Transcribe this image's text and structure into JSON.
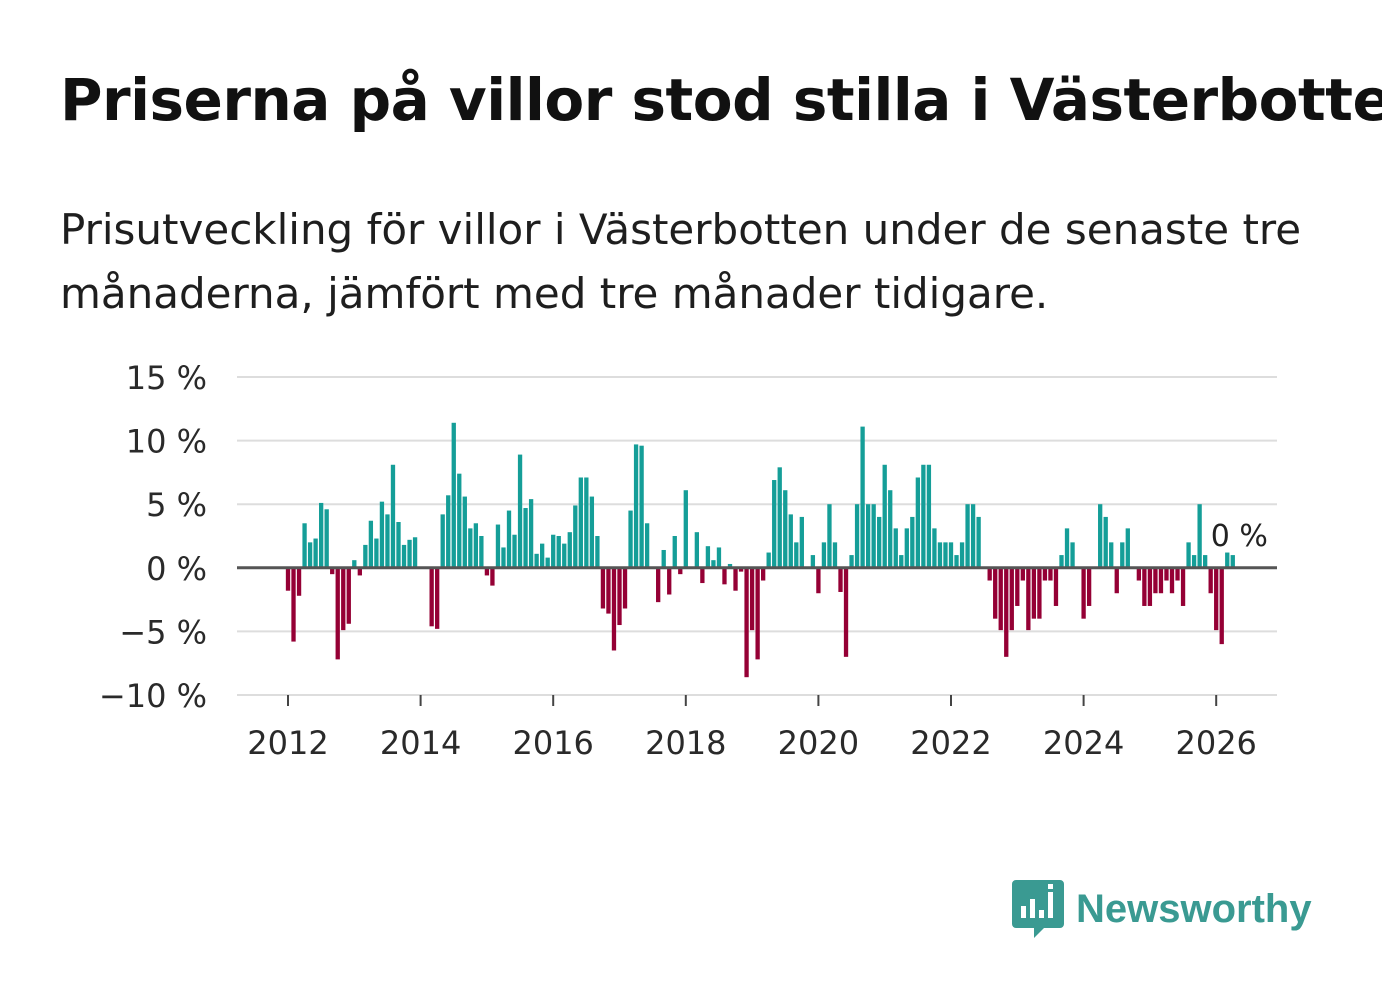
{
  "title": "Priserna på villor stod stilla i Västerbotten",
  "subtitle": "Prisutveckling för villor i Västerbotten under de senaste tre månaderna, jämfört med tre månader tidigare.",
  "brand": {
    "name": "Newsworthy",
    "color": "#3a9a92",
    "icon": "bar-chart-speech-bubble-icon"
  },
  "colors": {
    "positive": "#159e98",
    "negative": "#950035",
    "grid": "#dddddd",
    "zero": "#555555"
  },
  "chart_data": {
    "type": "bar",
    "title": "Priserna på villor stod stilla i Västerbotten",
    "xlabel": "",
    "ylabel": "",
    "ylim": [
      -10,
      15
    ],
    "yticks": [
      15,
      10,
      5,
      0,
      -5,
      -10
    ],
    "ytick_labels": [
      "15 %",
      "10 %",
      "5 %",
      "0 %",
      "−5 %",
      "−10 %"
    ],
    "xticks": [
      2012,
      2014,
      2016,
      2018,
      2020,
      2022,
      2024,
      2026
    ],
    "xtick_labels": [
      "2012",
      "2014",
      "2016",
      "2018",
      "2020",
      "2022",
      "2024",
      "2026"
    ],
    "start": {
      "year": 2012,
      "month": 1
    },
    "annotation": "0 %",
    "series": [
      {
        "name": "Prisutveckling",
        "values": [
          -1.8,
          -5.8,
          -2.2,
          3.5,
          2.0,
          2.3,
          5.1,
          4.6,
          -0.5,
          -7.2,
          -4.9,
          -4.4,
          0.6,
          -0.6,
          1.8,
          3.7,
          2.3,
          5.2,
          4.2,
          8.1,
          3.6,
          1.8,
          2.2,
          2.4,
          0.0,
          0.0,
          -4.6,
          -4.8,
          4.2,
          5.7,
          11.4,
          7.4,
          5.6,
          3.1,
          3.5,
          2.5,
          -0.6,
          -1.4,
          3.4,
          1.6,
          4.5,
          2.6,
          8.9,
          4.7,
          5.4,
          1.1,
          1.9,
          0.8,
          2.6,
          2.5,
          1.9,
          2.8,
          4.9,
          7.1,
          7.1,
          5.6,
          2.5,
          -3.2,
          -3.6,
          -6.5,
          -4.5,
          -3.2,
          4.5,
          9.7,
          9.6,
          3.5,
          0.0,
          -2.7,
          1.4,
          -2.1,
          2.5,
          -0.5,
          6.1,
          0.0,
          2.8,
          -1.2,
          1.7,
          0.6,
          1.6,
          -1.3,
          0.3,
          -1.8,
          -0.3,
          -8.6,
          -4.9,
          -7.2,
          -1.0,
          1.2,
          6.9,
          7.9,
          6.1,
          4.2,
          2.0,
          4.0,
          0.0,
          1.0,
          -2.0,
          2.0,
          5.0,
          2.0,
          -1.9,
          -7.0,
          1.0,
          5.0,
          11.1,
          5.0,
          5.0,
          4.0,
          8.1,
          6.1,
          3.1,
          1.0,
          3.1,
          4.0,
          7.1,
          8.1,
          8.1,
          3.1,
          2.0,
          2.0,
          2.0,
          1.0,
          2.0,
          5.0,
          5.0,
          4.0,
          0.0,
          -1.0,
          -4.0,
          -4.9,
          -7.0,
          -4.9,
          -3.0,
          -1.0,
          -4.9,
          -4.0,
          -4.0,
          -1.0,
          -1.0,
          -3.0,
          1.0,
          3.1,
          2.0,
          0.0,
          -4.0,
          -3.0,
          0.0,
          5.0,
          4.0,
          2.0,
          -2.0,
          2.0,
          3.1,
          0.0,
          -1.0,
          -3.0,
          -3.0,
          -2.0,
          -2.0,
          -1.0,
          -2.0,
          -1.0,
          -3.0,
          2.0,
          1.0,
          5.0,
          1.0,
          -2.0,
          -4.9,
          -6.0,
          1.2,
          1.0
        ]
      }
    ]
  }
}
